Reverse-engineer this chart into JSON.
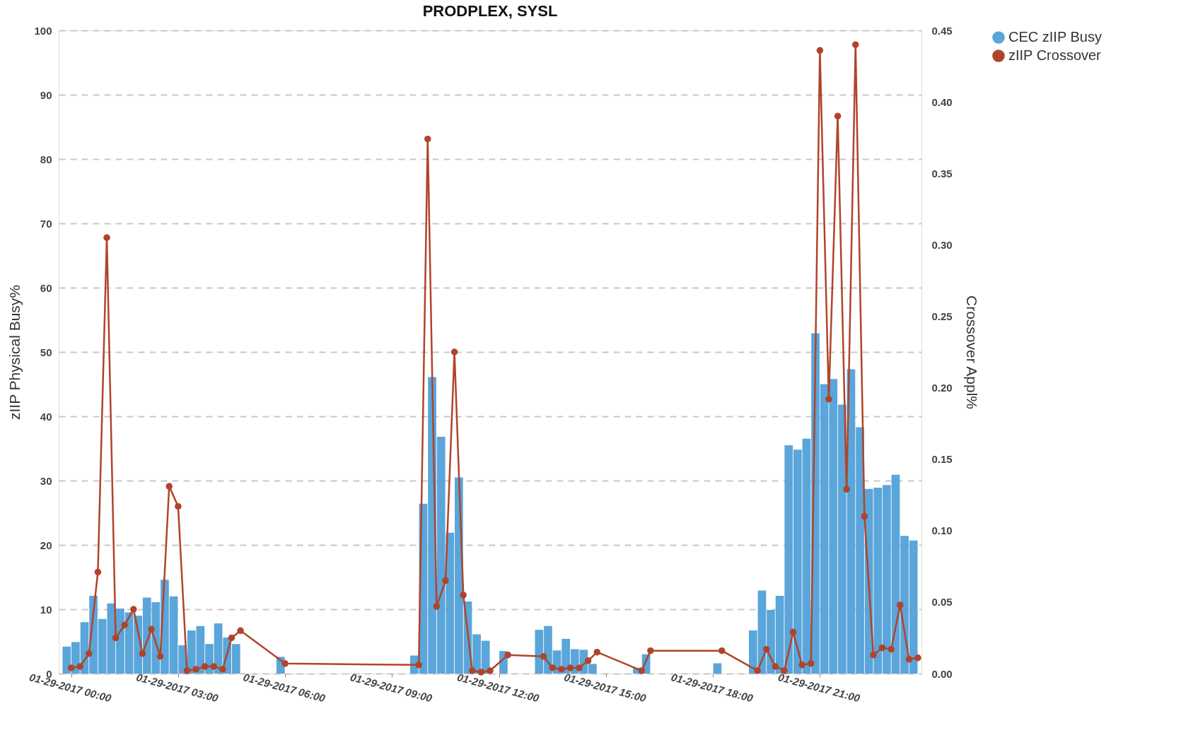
{
  "chart_data": {
    "type": "bar",
    "title": "PRODPLEX, SYSL",
    "ylabel": "zIIP Physical Busy%",
    "y2label": "Crossover Appl%",
    "xlim": [
      "2017-01-28T23:45",
      "2017-01-29T23:45"
    ],
    "xticks": [
      {
        "value": "2017-01-29T00:00",
        "label": "01-29-2017 00:00"
      },
      {
        "value": "2017-01-29T03:00",
        "label": "01-29-2017 03:00"
      },
      {
        "value": "2017-01-29T06:00",
        "label": "01-29-2017 06:00"
      },
      {
        "value": "2017-01-29T09:00",
        "label": "01-29-2017 09:00"
      },
      {
        "value": "2017-01-29T12:00",
        "label": "01-29-2017 12:00"
      },
      {
        "value": "2017-01-29T15:00",
        "label": "01-29-2017 15:00"
      },
      {
        "value": "2017-01-29T18:00",
        "label": "01-29-2017 18:00"
      },
      {
        "value": "2017-01-29T21:00",
        "label": "01-29-2017 21:00"
      }
    ],
    "ylim": [
      0,
      100
    ],
    "yticks": [
      0,
      10,
      20,
      30,
      40,
      50,
      60,
      70,
      80,
      90,
      100
    ],
    "y2lim": [
      0,
      0.45
    ],
    "y2ticks": [
      {
        "value": 0,
        "label": "0.00"
      },
      {
        "value": 0.05,
        "label": "0.05"
      },
      {
        "value": 0.1,
        "label": "0.10"
      },
      {
        "value": 0.15,
        "label": "0.15"
      },
      {
        "value": 0.2,
        "label": "0.20"
      },
      {
        "value": 0.25,
        "label": "0.25"
      },
      {
        "value": 0.3,
        "label": "0.30"
      },
      {
        "value": 0.35,
        "label": "0.35"
      },
      {
        "value": 0.4,
        "label": "0.40"
      },
      {
        "value": 0.45,
        "label": "0.45"
      }
    ],
    "grid": "y",
    "legend": "top right",
    "series": [
      {
        "name": "CEC zIIP Busy",
        "color": "#5aa5da",
        "x": [
          "2017-01-28T23:52:30",
          "2017-01-29T00:07:30",
          "2017-01-29T00:22:30",
          "2017-01-29T00:37:30",
          "2017-01-29T00:52:30",
          "2017-01-29T01:07:30",
          "2017-01-29T01:22:30",
          "2017-01-29T01:37:30",
          "2017-01-29T01:52:30",
          "2017-01-29T02:07:30",
          "2017-01-29T02:22:30",
          "2017-01-29T02:37:30",
          "2017-01-29T02:52:30",
          "2017-01-29T03:07:30",
          "2017-01-29T03:22:30",
          "2017-01-29T03:37:30",
          "2017-01-29T03:52:30",
          "2017-01-29T04:07:30",
          "2017-01-29T04:22:30",
          "2017-01-29T04:37:30",
          "2017-01-29T05:52:30",
          "2017-01-29T09:37:30",
          "2017-01-29T09:52:30",
          "2017-01-29T10:07:30",
          "2017-01-29T10:22:30",
          "2017-01-29T10:37:30",
          "2017-01-29T10:52:30",
          "2017-01-29T11:07:30",
          "2017-01-29T11:22:30",
          "2017-01-29T11:37:30",
          "2017-01-29T12:07:30",
          "2017-01-29T13:07:30",
          "2017-01-29T13:22:30",
          "2017-01-29T13:37:30",
          "2017-01-29T13:52:30",
          "2017-01-29T14:07:30",
          "2017-01-29T14:22:30",
          "2017-01-29T14:37:30",
          "2017-01-29T15:52:30",
          "2017-01-29T16:07:30",
          "2017-01-29T18:07:30",
          "2017-01-29T19:07:30",
          "2017-01-29T19:22:30",
          "2017-01-29T19:37:30",
          "2017-01-29T19:52:30",
          "2017-01-29T20:07:30",
          "2017-01-29T20:22:30",
          "2017-01-29T20:37:30",
          "2017-01-29T20:52:30",
          "2017-01-29T21:07:30",
          "2017-01-29T21:22:30",
          "2017-01-29T21:37:30",
          "2017-01-29T21:52:30",
          "2017-01-29T22:07:30",
          "2017-01-29T22:22:30",
          "2017-01-29T22:37:30",
          "2017-01-29T22:52:30",
          "2017-01-29T23:07:30",
          "2017-01-29T23:22:30",
          "2017-01-29T23:37:30"
        ],
        "values": [
          4.2,
          4.9,
          8.0,
          12.1,
          8.5,
          10.9,
          10.1,
          9.5,
          9.0,
          11.8,
          11.1,
          14.6,
          12.0,
          4.4,
          6.7,
          7.4,
          4.6,
          7.8,
          5.6,
          4.6,
          2.6,
          2.8,
          26.4,
          46.1,
          36.8,
          21.9,
          30.5,
          11.2,
          6.1,
          5.1,
          3.5,
          6.8,
          7.4,
          3.6,
          5.4,
          3.8,
          3.7,
          1.5,
          0.9,
          3.0,
          1.6,
          6.7,
          12.9,
          9.9,
          12.1,
          35.5,
          34.8,
          36.5,
          52.9,
          45.0,
          45.8,
          41.8,
          47.3,
          38.3,
          28.7,
          28.9,
          29.3,
          30.9,
          21.4,
          20.7
        ]
      },
      {
        "name": "zIIP Crossover",
        "type": "line",
        "axis": "y2",
        "color": "#b0442a",
        "marker": "circle",
        "line_style": "solid",
        "x": [
          "2017-01-29T00:00",
          "2017-01-29T00:15",
          "2017-01-29T00:30",
          "2017-01-29T00:45",
          "2017-01-29T01:00",
          "2017-01-29T01:15",
          "2017-01-29T01:30",
          "2017-01-29T01:45",
          "2017-01-29T02:00",
          "2017-01-29T02:15",
          "2017-01-29T02:30",
          "2017-01-29T02:45",
          "2017-01-29T03:00",
          "2017-01-29T03:15",
          "2017-01-29T03:30",
          "2017-01-29T03:45",
          "2017-01-29T04:00",
          "2017-01-29T04:15",
          "2017-01-29T04:30",
          "2017-01-29T04:45",
          "2017-01-29T06:00",
          "2017-01-29T09:45",
          "2017-01-29T10:00",
          "2017-01-29T10:15",
          "2017-01-29T10:30",
          "2017-01-29T10:45",
          "2017-01-29T11:00",
          "2017-01-29T11:15",
          "2017-01-29T11:30",
          "2017-01-29T11:45",
          "2017-01-29T12:15",
          "2017-01-29T13:15",
          "2017-01-29T13:30",
          "2017-01-29T13:45",
          "2017-01-29T14:00",
          "2017-01-29T14:15",
          "2017-01-29T14:30",
          "2017-01-29T14:45",
          "2017-01-29T16:00",
          "2017-01-29T16:15",
          "2017-01-29T18:15",
          "2017-01-29T19:15",
          "2017-01-29T19:30",
          "2017-01-29T19:45",
          "2017-01-29T20:00",
          "2017-01-29T20:15",
          "2017-01-29T20:30",
          "2017-01-29T20:45",
          "2017-01-29T21:00",
          "2017-01-29T21:15",
          "2017-01-29T21:30",
          "2017-01-29T21:45",
          "2017-01-29T22:00",
          "2017-01-29T22:15",
          "2017-01-29T22:30",
          "2017-01-29T22:45",
          "2017-01-29T23:00",
          "2017-01-29T23:15",
          "2017-01-29T23:30",
          "2017-01-29T23:45"
        ],
        "values": [
          0.004,
          0.005,
          0.014,
          0.071,
          0.305,
          0.025,
          0.034,
          0.045,
          0.014,
          0.031,
          0.012,
          0.131,
          0.117,
          0.002,
          0.003,
          0.005,
          0.005,
          0.003,
          0.025,
          0.03,
          0.007,
          0.006,
          0.374,
          0.047,
          0.065,
          0.225,
          0.055,
          0.002,
          0.001,
          0.002,
          0.013,
          0.012,
          0.004,
          0.003,
          0.004,
          0.004,
          0.009,
          0.015,
          0.002,
          0.016,
          0.016,
          0.002,
          0.017,
          0.005,
          0.002,
          0.029,
          0.006,
          0.007,
          0.436,
          0.192,
          0.39,
          0.129,
          0.44,
          0.11,
          0.013,
          0.018,
          0.017,
          0.048,
          0.01,
          0.011
        ]
      }
    ]
  }
}
